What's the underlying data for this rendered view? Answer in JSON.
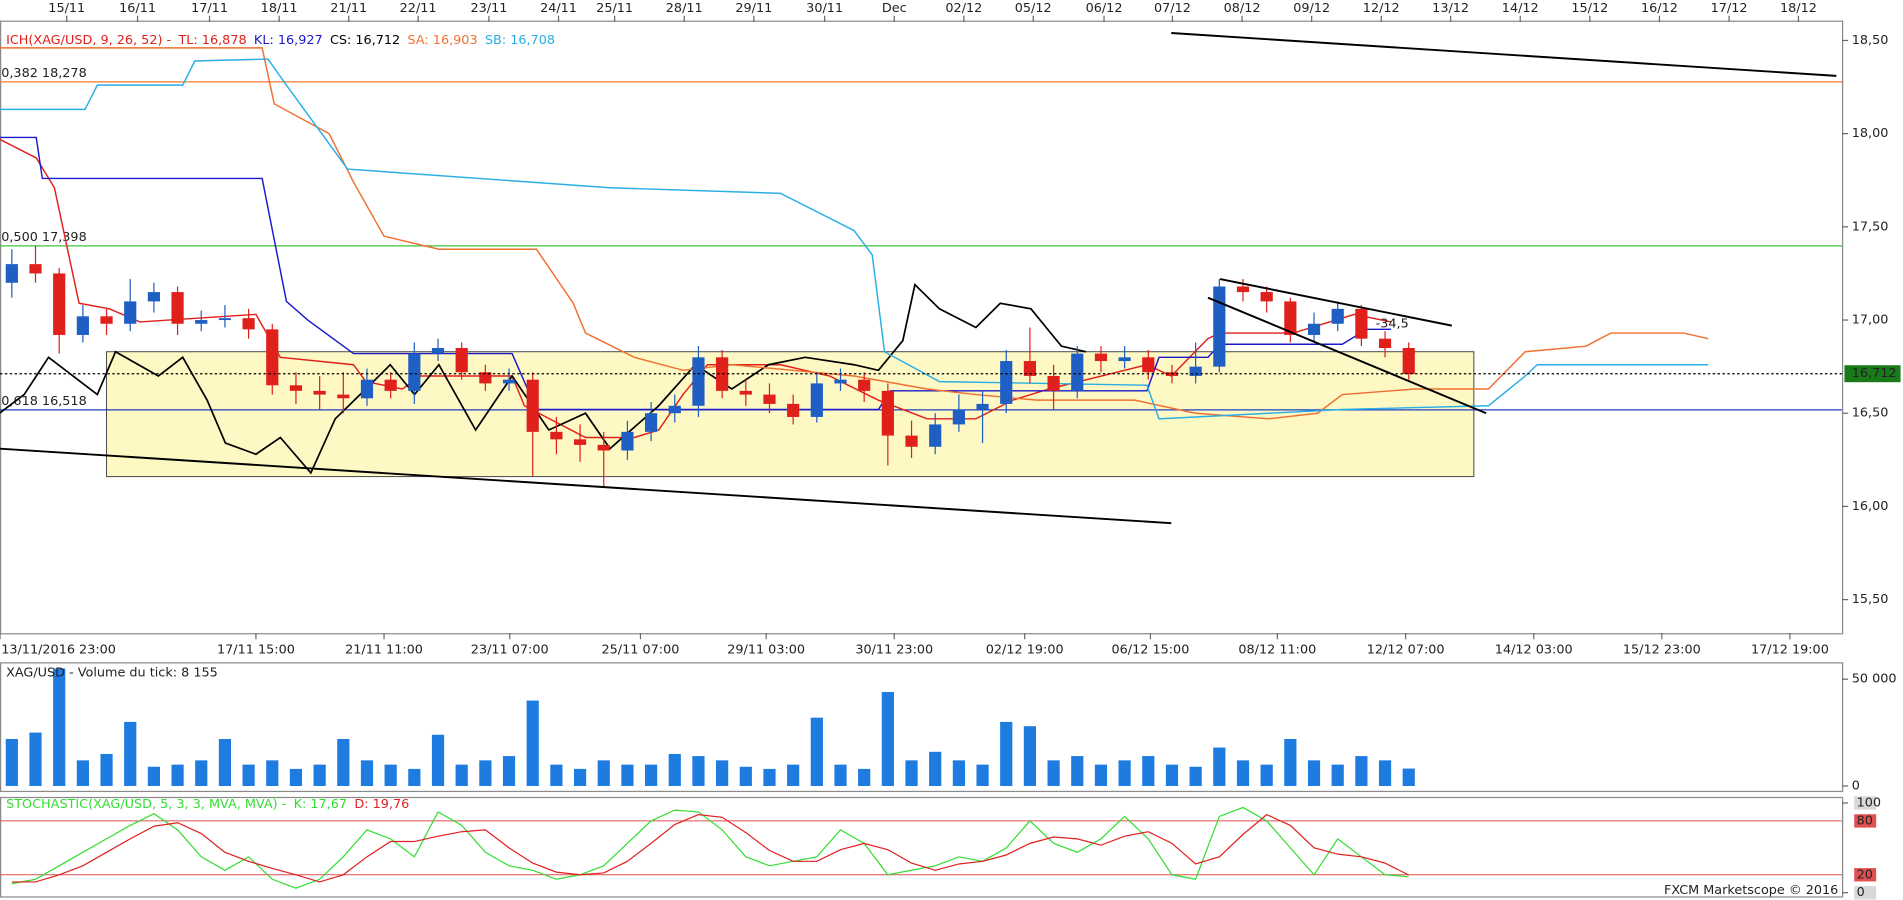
{
  "chart_data": [
    {
      "type": "candlestick",
      "indicator_label": "ICH(XAG/USD, 9, 26, 52) -",
      "up_color": "#1f5fc4",
      "down_color": "#e0201b",
      "open": [
        17.2,
        17.3,
        17.25,
        16.92,
        17.02,
        16.98,
        17.1,
        17.15,
        16.98,
        17.0,
        17.01,
        16.95,
        16.65,
        16.62,
        16.6,
        16.58,
        16.68,
        16.62,
        16.82,
        16.85,
        16.72,
        16.66,
        16.68,
        16.4,
        16.36,
        16.33,
        16.3,
        16.4,
        16.5,
        16.54,
        16.8,
        16.62,
        16.6,
        16.55,
        16.48,
        16.66,
        16.68,
        16.62,
        16.38,
        16.32,
        16.44,
        16.52,
        16.55,
        16.78,
        16.7,
        16.62,
        16.82,
        16.78,
        16.8,
        16.72,
        16.7,
        16.75,
        17.18,
        17.15,
        17.1,
        16.92,
        16.98,
        17.06,
        16.9,
        16.85
      ],
      "high": [
        17.38,
        17.4,
        17.28,
        17.08,
        17.06,
        17.22,
        17.2,
        17.18,
        17.05,
        17.08,
        17.06,
        16.98,
        16.72,
        16.7,
        16.72,
        16.74,
        16.72,
        16.88,
        16.9,
        16.88,
        16.76,
        16.74,
        16.72,
        16.48,
        16.44,
        16.4,
        16.46,
        16.56,
        16.6,
        16.86,
        16.84,
        16.68,
        16.66,
        16.6,
        16.72,
        16.74,
        16.72,
        16.66,
        16.46,
        16.5,
        16.6,
        16.62,
        16.84,
        16.96,
        16.76,
        16.86,
        16.86,
        16.86,
        16.84,
        16.76,
        16.88,
        17.22,
        17.22,
        17.18,
        17.12,
        17.04,
        17.1,
        17.08,
        16.94,
        16.88
      ],
      "low": [
        17.12,
        17.2,
        16.82,
        16.88,
        16.92,
        16.94,
        17.04,
        16.92,
        16.94,
        16.96,
        16.9,
        16.6,
        16.55,
        16.52,
        16.5,
        16.54,
        16.58,
        16.55,
        16.78,
        16.68,
        16.62,
        16.62,
        16.16,
        16.28,
        16.24,
        16.1,
        16.25,
        16.35,
        16.45,
        16.48,
        16.58,
        16.54,
        16.5,
        16.44,
        16.45,
        16.62,
        16.56,
        16.22,
        16.26,
        16.28,
        16.4,
        16.34,
        16.5,
        16.66,
        16.52,
        16.58,
        16.72,
        16.74,
        16.68,
        16.66,
        16.66,
        16.72,
        17.1,
        17.04,
        16.88,
        16.88,
        16.94,
        16.86,
        16.8,
        16.68
      ],
      "close": [
        17.3,
        17.25,
        16.92,
        17.02,
        16.98,
        17.1,
        17.15,
        16.98,
        17.0,
        17.01,
        16.95,
        16.65,
        16.62,
        16.6,
        16.58,
        16.68,
        16.62,
        16.82,
        16.85,
        16.72,
        16.66,
        16.68,
        16.4,
        16.36,
        16.33,
        16.3,
        16.4,
        16.5,
        16.54,
        16.8,
        16.62,
        16.6,
        16.55,
        16.48,
        16.66,
        16.68,
        16.62,
        16.38,
        16.32,
        16.44,
        16.52,
        16.55,
        16.78,
        16.7,
        16.62,
        16.82,
        16.78,
        16.8,
        16.72,
        16.7,
        16.75,
        17.18,
        17.15,
        17.1,
        16.92,
        16.98,
        17.06,
        16.9,
        16.85,
        16.71
      ],
      "series": [
        {
          "name": "TL: 16,878",
          "color": "#e0201b",
          "x": [
            -0.52,
            1.03,
            1.8,
            2.84,
            4.12,
            5.41,
            10.31,
            11.34,
            14.43,
            14.95,
            16.49,
            17.27,
            21.13,
            21.65,
            24.23,
            26.29,
            27.32,
            28.35,
            29.38,
            32.47,
            34.54,
            36.6,
            38.66,
            40.72,
            42.27,
            43.81,
            47.94,
            48.97,
            50.52,
            51.03,
            54.12,
            56.7,
            58.25
          ],
          "values": [
            17.97,
            17.87,
            17.71,
            17.09,
            17.06,
            16.99,
            17.03,
            16.8,
            16.76,
            16.67,
            16.63,
            16.7,
            16.7,
            16.54,
            16.37,
            16.37,
            16.41,
            16.6,
            16.76,
            16.76,
            16.7,
            16.57,
            16.47,
            16.47,
            16.57,
            16.63,
            16.76,
            16.7,
            16.9,
            16.93,
            16.93,
            17.03,
            16.99
          ]
        },
        {
          "name": "KL: 16,927",
          "color": "#1a1acc",
          "x": [
            -0.52,
            1.03,
            1.29,
            10.57,
            11.6,
            12.5,
            14.43,
            21.13,
            22.16,
            36.6,
            37.1,
            47.94,
            48.45,
            50.52,
            51.03,
            56.19,
            57.22,
            58.25
          ],
          "values": [
            17.98,
            17.98,
            17.76,
            17.76,
            17.1,
            17.0,
            16.82,
            16.82,
            16.52,
            16.52,
            16.62,
            16.62,
            16.8,
            16.8,
            16.87,
            16.87,
            16.95,
            16.95
          ]
        },
        {
          "name": "CS: 16,712",
          "color": "#000000",
          "x": [
            -0.52,
            0.52,
            1.55,
            3.61,
            4.38,
            6.19,
            7.22,
            8.25,
            9.02,
            10.31,
            11.34,
            12.63,
            13.66,
            14.95,
            15.98,
            17.01,
            18.04,
            19.59,
            21.13,
            22.68,
            24.23,
            25.26,
            27.32,
            28.87,
            30.41,
            31.96,
            33.51,
            35.57,
            36.6,
            37.63,
            38.14,
            39.18,
            40.72,
            41.75,
            43.04,
            44.33,
            45.36
          ],
          "values": [
            16.5,
            16.6,
            16.8,
            16.6,
            16.83,
            16.7,
            16.8,
            16.57,
            16.34,
            16.28,
            16.37,
            16.18,
            16.47,
            16.63,
            16.76,
            16.6,
            16.76,
            16.41,
            16.7,
            16.41,
            16.5,
            16.31,
            16.54,
            16.76,
            16.63,
            16.76,
            16.8,
            16.76,
            16.73,
            16.89,
            17.19,
            17.06,
            16.96,
            17.09,
            17.06,
            16.86,
            16.83
          ]
        },
        {
          "name": "SA: 16,903",
          "color": "#f07030",
          "x": [
            -0.52,
            10.57,
            11.08,
            13.4,
            14.43,
            15.72,
            18.04,
            22.16,
            23.71,
            24.23,
            26.29,
            28.35,
            30.41,
            32.99,
            35.57,
            38.66,
            40.72,
            43.3,
            47.42,
            50.0,
            53.09,
            55.15,
            56.19,
            59.28,
            62.37,
            63.92,
            66.49,
            67.53,
            70.62,
            71.65
          ],
          "values": [
            18.46,
            18.46,
            18.16,
            18.0,
            17.74,
            17.45,
            17.38,
            17.38,
            17.09,
            16.93,
            16.8,
            16.73,
            16.76,
            16.73,
            16.7,
            16.63,
            16.6,
            16.57,
            16.57,
            16.5,
            16.47,
            16.5,
            16.6,
            16.63,
            16.63,
            16.83,
            16.86,
            16.93,
            16.93,
            16.9
          ]
        },
        {
          "name": "SB: 16,708",
          "color": "#29aee6",
          "x": [
            -0.52,
            3.09,
            3.61,
            7.22,
            7.73,
            10.82,
            11.6,
            14.18,
            25.26,
            32.47,
            35.57,
            36.34,
            36.86,
            39.18,
            47.94,
            48.45,
            56.19,
            62.37,
            63.92,
            64.43,
            71.65
          ],
          "values": [
            18.13,
            18.13,
            18.26,
            18.26,
            18.39,
            18.4,
            18.26,
            17.81,
            17.71,
            17.68,
            17.48,
            17.35,
            16.83,
            16.67,
            16.65,
            16.47,
            16.52,
            16.54,
            16.7,
            16.76,
            16.76
          ]
        }
      ],
      "levels": [
        {
          "label": "0,382 18,278",
          "value": 18.278,
          "color": "#f07830"
        },
        {
          "label": "0,500 17,398",
          "value": 17.398,
          "color": "#3fc23f"
        },
        {
          "label": "0,618 16,518",
          "value": 16.518,
          "color": "#2040c0"
        }
      ],
      "last_price": {
        "value": 16.712,
        "label": "16,712",
        "color": "#1a7a1a"
      },
      "rectangle": {
        "x": [
          4.0,
          61.75
        ],
        "y": [
          16.16,
          16.83
        ],
        "color": "#fdf8c4"
      },
      "trend_lines": [
        {
          "x": [
            -0.52,
            48.97
          ],
          "y": [
            16.31,
            15.91
          ]
        },
        {
          "x": [
            48.97,
            77.06
          ],
          "y": [
            18.54,
            18.31
          ]
        },
        {
          "x": [
            51.03,
            60.82
          ],
          "y": [
            17.22,
            16.97
          ]
        },
        {
          "x": [
            50.52,
            62.27
          ],
          "y": [
            17.12,
            16.5
          ]
        }
      ],
      "annotations": [
        {
          "text": "-34,5",
          "x": 58.3,
          "y": 16.98
        }
      ],
      "xlim": [
        -0.5,
        77.3
      ],
      "ylim": [
        15.32,
        18.6
      ],
      "yticks": [
        {
          "value": 15.5,
          "label": "15,50"
        },
        {
          "value": 16,
          "label": "16,00"
        },
        {
          "value": 16.5,
          "label": "16,50"
        },
        {
          "value": 17,
          "label": "17,00"
        },
        {
          "value": 17.5,
          "label": "17,50"
        },
        {
          "value": 18,
          "label": "18,00"
        },
        {
          "value": 18.5,
          "label": "18,50"
        }
      ],
      "xticks_top": [
        {
          "value": 2.32,
          "label": "15/11"
        },
        {
          "value": 5.31,
          "label": "16/11"
        },
        {
          "value": 8.35,
          "label": "17/11"
        },
        {
          "value": 11.29,
          "label": "18/11"
        },
        {
          "value": 14.23,
          "label": "21/11"
        },
        {
          "value": 17.16,
          "label": "22/11"
        },
        {
          "value": 20.15,
          "label": "23/11"
        },
        {
          "value": 23.09,
          "label": "24/11"
        },
        {
          "value": 25.46,
          "label": "25/11"
        },
        {
          "value": 28.4,
          "label": "28/11"
        },
        {
          "value": 31.34,
          "label": "29/11"
        },
        {
          "value": 34.33,
          "label": "30/11"
        },
        {
          "value": 37.27,
          "label": "Dec"
        },
        {
          "value": 40.21,
          "label": "02/12"
        },
        {
          "value": 43.14,
          "label": "05/12"
        },
        {
          "value": 46.13,
          "label": "06/12"
        },
        {
          "value": 49.02,
          "label": "07/12"
        },
        {
          "value": 51.96,
          "label": "08/12"
        },
        {
          "value": 54.9,
          "label": "09/12"
        },
        {
          "value": 57.84,
          "label": "12/12"
        },
        {
          "value": 60.77,
          "label": "13/12"
        },
        {
          "value": 63.71,
          "label": "14/12"
        },
        {
          "value": 66.65,
          "label": "15/12"
        },
        {
          "value": 69.59,
          "label": "16/12"
        },
        {
          "value": 72.53,
          "label": "17/12"
        },
        {
          "value": 75.46,
          "label": "18/12"
        }
      ],
      "xticks": [
        {
          "value": -0.5,
          "label": "13/11/2016 23:00"
        },
        {
          "value": 10.31,
          "label": "17/11 15:00"
        },
        {
          "value": 15.72,
          "label": "21/11 11:00"
        },
        {
          "value": 21.03,
          "label": "23/11 07:00"
        },
        {
          "value": 26.55,
          "label": "25/11 07:00"
        },
        {
          "value": 31.86,
          "label": "29/11 03:00"
        },
        {
          "value": 37.27,
          "label": "30/11 23:00"
        },
        {
          "value": 42.78,
          "label": "02/12 19:00"
        },
        {
          "value": 48.09,
          "label": "06/12 15:00"
        },
        {
          "value": 53.45,
          "label": "08/12 11:00"
        },
        {
          "value": 58.87,
          "label": "12/12 07:00"
        },
        {
          "value": 64.28,
          "label": "14/12 03:00"
        },
        {
          "value": 69.69,
          "label": "15/12 23:00"
        },
        {
          "value": 75.1,
          "label": "17/12 19:00"
        }
      ]
    },
    {
      "type": "bar",
      "title": "XAG/USD - Volume du tick: 8 155",
      "color": "#1e7be0",
      "values": [
        22000,
        25000,
        55000,
        12000,
        15000,
        30000,
        9000,
        10000,
        12000,
        22000,
        10000,
        12000,
        8000,
        10000,
        22000,
        12000,
        10000,
        8000,
        24000,
        10000,
        12000,
        14000,
        40000,
        10000,
        8000,
        12000,
        10000,
        10000,
        15000,
        14000,
        12000,
        9000,
        8000,
        10000,
        32000,
        10000,
        8000,
        44000,
        12000,
        16000,
        12000,
        10000,
        30000,
        28000,
        12000,
        14000,
        10000,
        12000,
        14000,
        10000,
        9000,
        18000,
        12000,
        10000,
        22000,
        12000,
        10000,
        14000,
        12000,
        8155
      ],
      "ylim": [
        0,
        56800
      ],
      "yticks": [
        0,
        {
          "value": 50000,
          "label": "50 000"
        }
      ]
    },
    {
      "type": "line",
      "indicator_label": "STOCHASTIC(XAG/USD, 5, 3, 3, MVA, MVA) -",
      "ref_color": "#e05050",
      "series": [
        {
          "name": "K: 17,67",
          "color": "#33dd33",
          "values": [
            10,
            15,
            30,
            45,
            60,
            75,
            88,
            70,
            40,
            25,
            40,
            15,
            5,
            15,
            40,
            70,
            60,
            40,
            90,
            75,
            45,
            30,
            25,
            15,
            20,
            30,
            55,
            80,
            92,
            90,
            70,
            40,
            30,
            35,
            40,
            70,
            55,
            20,
            25,
            30,
            40,
            35,
            50,
            80,
            55,
            45,
            60,
            85,
            60,
            20,
            15,
            85,
            95,
            80,
            50,
            20,
            60,
            40,
            20,
            17.67
          ]
        },
        {
          "name": "D: 19,76",
          "color": "#e02020",
          "values": [
            12,
            12,
            20,
            30,
            45,
            60,
            74,
            78,
            66,
            45,
            35,
            27,
            20,
            12,
            20,
            40,
            57,
            57,
            63,
            68,
            70,
            50,
            33,
            23,
            20,
            22,
            35,
            55,
            76,
            87,
            84,
            67,
            47,
            35,
            35,
            48,
            55,
            48,
            33,
            25,
            32,
            35,
            42,
            55,
            62,
            60,
            53,
            63,
            68,
            55,
            32,
            40,
            65,
            87,
            75,
            50,
            43,
            40,
            33,
            19.76
          ]
        }
      ],
      "ylim": [
        0,
        100
      ],
      "yticks": [
        0,
        20,
        80,
        100
      ]
    }
  ],
  "footer": "FXCM Marketscope © 2016"
}
